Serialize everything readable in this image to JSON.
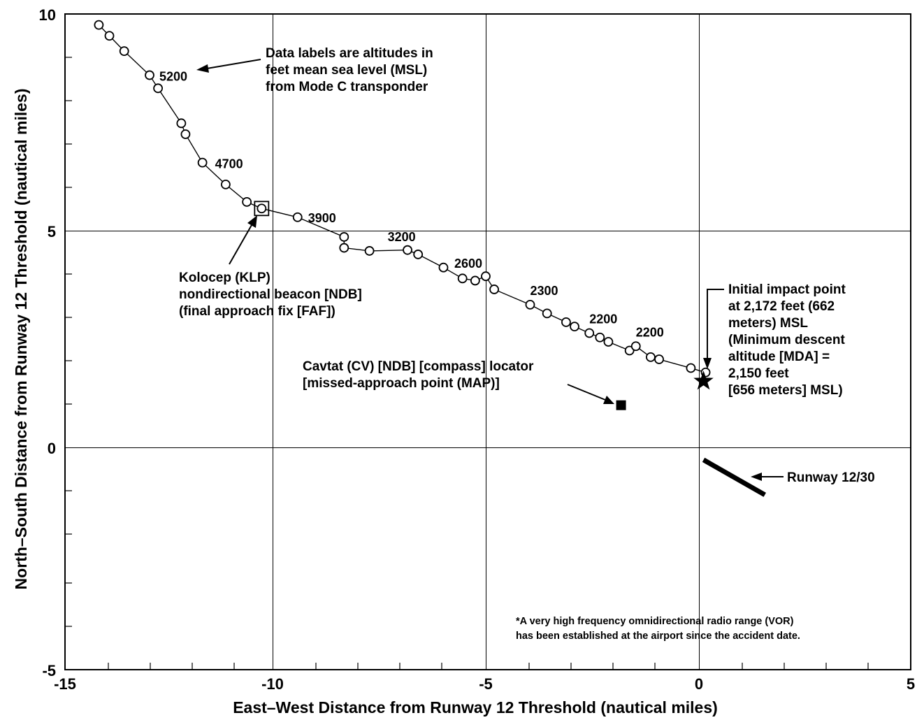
{
  "chart_data": {
    "type": "scatter",
    "xlabel": "East–West Distance from Runway 12 Threshold (nautical miles)",
    "ylabel": "North–South Distance from Runway 12 Threshold (nautical miles)",
    "xlim": [
      -15,
      5
    ],
    "ylim": [
      -5,
      10
    ],
    "xticks": [
      -15,
      -10,
      -5,
      0,
      5
    ],
    "yticks": [
      -5,
      0,
      5,
      10
    ],
    "grid": true,
    "flight_track": [
      {
        "x": -14.2,
        "y": 9.75
      },
      {
        "x": -13.95,
        "y": 9.5
      },
      {
        "x": -13.6,
        "y": 9.15
      },
      {
        "x": -13.0,
        "y": 8.6,
        "label": "5200"
      },
      {
        "x": -12.8,
        "y": 8.3
      },
      {
        "x": -12.25,
        "y": 7.5
      },
      {
        "x": -12.15,
        "y": 7.25
      },
      {
        "x": -11.75,
        "y": 6.6,
        "label": "4700"
      },
      {
        "x": -11.2,
        "y": 6.1
      },
      {
        "x": -10.7,
        "y": 5.7
      },
      {
        "x": -10.35,
        "y": 5.55
      },
      {
        "x": -9.5,
        "y": 5.35,
        "label": "3900"
      },
      {
        "x": -8.4,
        "y": 4.9
      },
      {
        "x": -8.4,
        "y": 4.65
      },
      {
        "x": -7.8,
        "y": 4.58,
        "label": "3200"
      },
      {
        "x": -6.9,
        "y": 4.6
      },
      {
        "x": -6.65,
        "y": 4.5
      },
      {
        "x": -6.05,
        "y": 4.2
      },
      {
        "x": -5.6,
        "y": 3.95
      },
      {
        "x": -5.3,
        "y": 3.9
      },
      {
        "x": -5.05,
        "y": 4.0,
        "label": "2600"
      },
      {
        "x": -4.85,
        "y": 3.7
      },
      {
        "x": -4.0,
        "y": 3.35,
        "label": "2300"
      },
      {
        "x": -3.6,
        "y": 3.15
      },
      {
        "x": -3.15,
        "y": 2.95
      },
      {
        "x": -2.95,
        "y": 2.85
      },
      {
        "x": -2.6,
        "y": 2.7,
        "label": "2200"
      },
      {
        "x": -2.35,
        "y": 2.6
      },
      {
        "x": -2.15,
        "y": 2.5
      },
      {
        "x": -1.65,
        "y": 2.3
      },
      {
        "x": -1.5,
        "y": 2.4,
        "label": "2200"
      },
      {
        "x": -1.15,
        "y": 2.15
      },
      {
        "x": -0.95,
        "y": 2.1
      },
      {
        "x": -0.2,
        "y": 1.9
      },
      {
        "x": 0.15,
        "y": 1.8
      }
    ],
    "navaids": [
      {
        "name": "Kolocep (KLP)",
        "x": -10.35,
        "y": 5.55,
        "marker": "square-outline"
      },
      {
        "name": "Cavtat (CV)",
        "x": -1.85,
        "y": 1.05,
        "marker": "square-filled"
      }
    ],
    "impact_point": {
      "x": 0.1,
      "y": 1.6
    },
    "runway": {
      "from": {
        "x": 0.1,
        "y": -0.2
      },
      "to": {
        "x": 1.55,
        "y": -1.0
      }
    }
  },
  "annotations": {
    "data_labels_note": [
      "Data labels are altitudes in",
      "feet mean sea level (MSL)",
      "from Mode C transponder"
    ],
    "kolocep": [
      "Kolocep (KLP)",
      "nondirectional beacon [NDB]",
      "(final approach fix [FAF])"
    ],
    "cavtat": [
      "Cavtat (CV) [NDB] [compass] locator",
      "[missed-approach point (MAP)]"
    ],
    "impact": [
      "Initial impact point",
      "at 2,172 feet (662",
      "meters) MSL",
      "(Minimum descent",
      "altitude [MDA] =",
      "2,150 feet",
      "[656 meters] MSL)"
    ],
    "runway": "Runway 12/30",
    "vor_note": [
      "*A very high frequency omnidirectional radio range (VOR)",
      "has been established at the airport since the accident date."
    ]
  },
  "colors": {
    "ink": "#000000",
    "background": "#ffffff",
    "marker_fill": "#ffffff"
  }
}
